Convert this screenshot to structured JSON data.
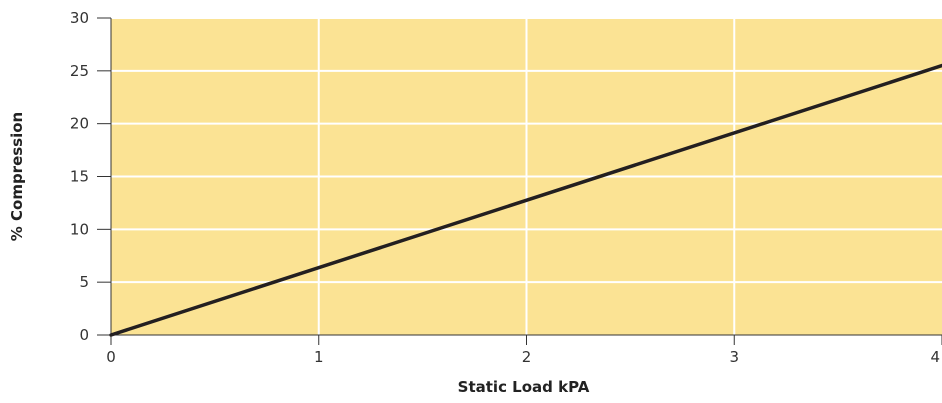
{
  "chart_data": {
    "type": "line",
    "xlabel": "Static Load kPA",
    "ylabel": "% Compression",
    "xlim": [
      0,
      4
    ],
    "ylim": [
      0,
      30
    ],
    "x_ticks": [
      "0",
      "1",
      "2",
      "3",
      "4"
    ],
    "y_ticks": [
      "0",
      "5",
      "10",
      "15",
      "20",
      "25",
      "30"
    ],
    "grid": true,
    "series": [
      {
        "x": [
          0,
          4
        ],
        "y": [
          0,
          25.5
        ]
      }
    ],
    "colors": {
      "plot_background": "#fbe394",
      "gridline": "#ffffff",
      "line": "#231f20",
      "axis": "#333333"
    }
  }
}
